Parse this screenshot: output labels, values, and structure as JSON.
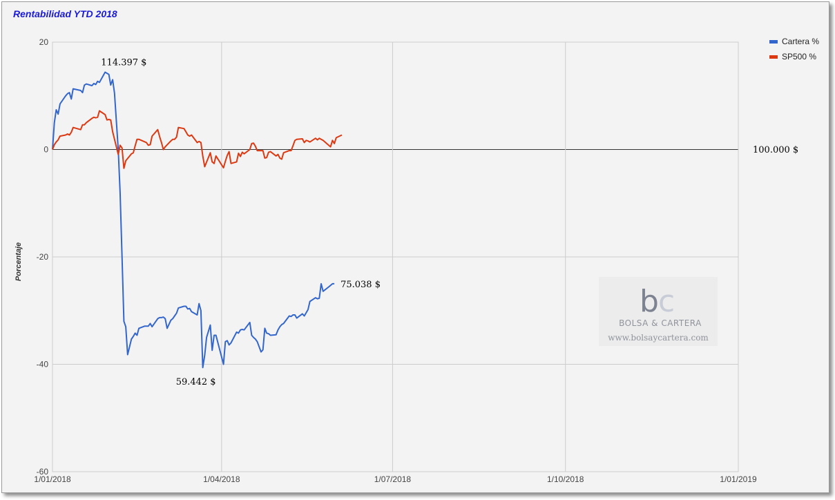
{
  "chart_data": {
    "type": "line",
    "title": "Rentabilidad YTD 2018",
    "ylabel": "Porcentaje",
    "xlabel": "",
    "ylim": [
      -60,
      20
    ],
    "yticks": [
      "20",
      "0",
      "-20",
      "-40",
      "-60"
    ],
    "xlim": [
      "2018-01-01",
      "2019-01-01"
    ],
    "xticks": [
      {
        "date": "2018-01-01",
        "label": "1/01/2018"
      },
      {
        "date": "2018-04-01",
        "label": "1/04/2018"
      },
      {
        "date": "2018-07-01",
        "label": "1/07/2018"
      },
      {
        "date": "2018-10-01",
        "label": "1/10/2018"
      },
      {
        "date": "2019-01-01",
        "label": "1/01/2019"
      }
    ],
    "grid": true,
    "legend_position": "top-right",
    "baseline_label": "100.000 $",
    "annotations": [
      {
        "date": "2018-02-08",
        "y": 14.4,
        "text": "114.397 $"
      },
      {
        "date": "2018-03-22",
        "y": -40.6,
        "text": "59.442 $"
      },
      {
        "date": "2018-05-31",
        "y": -25.0,
        "text": "75.038 $"
      }
    ],
    "series": [
      {
        "name": "Cartera %",
        "color": "#3366cc",
        "points": [
          [
            "2018-01-01",
            0.0
          ],
          [
            "2018-01-02",
            5.0
          ],
          [
            "2018-01-03",
            7.4
          ],
          [
            "2018-01-04",
            6.6
          ],
          [
            "2018-01-05",
            8.5
          ],
          [
            "2018-01-08",
            10.0
          ],
          [
            "2018-01-09",
            10.4
          ],
          [
            "2018-01-10",
            10.6
          ],
          [
            "2018-01-11",
            9.4
          ],
          [
            "2018-01-12",
            11.3
          ],
          [
            "2018-01-16",
            11.0
          ],
          [
            "2018-01-17",
            10.6
          ],
          [
            "2018-01-18",
            12.0
          ],
          [
            "2018-01-19",
            12.2
          ],
          [
            "2018-01-22",
            11.9
          ],
          [
            "2018-01-23",
            12.3
          ],
          [
            "2018-01-24",
            12.1
          ],
          [
            "2018-01-25",
            12.7
          ],
          [
            "2018-01-26",
            12.5
          ],
          [
            "2018-01-29",
            14.4
          ],
          [
            "2018-01-30",
            14.2
          ],
          [
            "2018-01-31",
            14.0
          ],
          [
            "2018-02-01",
            12.0
          ],
          [
            "2018-02-02",
            13.0
          ],
          [
            "2018-02-03",
            10.5
          ],
          [
            "2018-02-05",
            0.0
          ],
          [
            "2018-02-06",
            -8.0
          ],
          [
            "2018-02-07",
            -20.0
          ],
          [
            "2018-02-08",
            -32.0
          ],
          [
            "2018-02-09",
            -33.0
          ],
          [
            "2018-02-10",
            -38.2
          ],
          [
            "2018-02-12",
            -35.3
          ],
          [
            "2018-02-13",
            -34.8
          ],
          [
            "2018-02-14",
            -34.2
          ],
          [
            "2018-02-15",
            -34.6
          ],
          [
            "2018-02-16",
            -33.3
          ],
          [
            "2018-02-19",
            -32.9
          ],
          [
            "2018-02-20",
            -32.9
          ],
          [
            "2018-02-21",
            -32.9
          ],
          [
            "2018-02-22",
            -32.4
          ],
          [
            "2018-02-23",
            -33.0
          ],
          [
            "2018-02-26",
            -31.5
          ],
          [
            "2018-02-27",
            -31.3
          ],
          [
            "2018-02-28",
            -31.3
          ],
          [
            "2018-03-01",
            -31.2
          ],
          [
            "2018-03-02",
            -31.5
          ],
          [
            "2018-03-03",
            -33.3
          ],
          [
            "2018-03-05",
            -31.8
          ],
          [
            "2018-03-06",
            -31.5
          ],
          [
            "2018-03-07",
            -31.0
          ],
          [
            "2018-03-08",
            -30.5
          ],
          [
            "2018-03-09",
            -29.5
          ],
          [
            "2018-03-12",
            -29.2
          ],
          [
            "2018-03-13",
            -29.2
          ],
          [
            "2018-03-14",
            -29.7
          ],
          [
            "2018-03-15",
            -29.6
          ],
          [
            "2018-03-16",
            -30.2
          ],
          [
            "2018-03-19",
            -30.8
          ],
          [
            "2018-03-20",
            -28.7
          ],
          [
            "2018-03-21",
            -30.0
          ],
          [
            "2018-03-22",
            -40.6
          ],
          [
            "2018-03-23",
            -38.3
          ],
          [
            "2018-03-24",
            -35.0
          ],
          [
            "2018-03-26",
            -32.7
          ],
          [
            "2018-03-27",
            -37.4
          ],
          [
            "2018-03-28",
            -34.6
          ],
          [
            "2018-03-29",
            -34.6
          ],
          [
            "2018-04-02",
            -40.0
          ],
          [
            "2018-04-03",
            -35.8
          ],
          [
            "2018-04-04",
            -35.6
          ],
          [
            "2018-04-05",
            -36.4
          ],
          [
            "2018-04-06",
            -36.0
          ],
          [
            "2018-04-09",
            -34.0
          ],
          [
            "2018-04-10",
            -34.2
          ],
          [
            "2018-04-11",
            -33.6
          ],
          [
            "2018-04-12",
            -33.5
          ],
          [
            "2018-04-13",
            -33.6
          ],
          [
            "2018-04-16",
            -32.2
          ],
          [
            "2018-04-17",
            -34.6
          ],
          [
            "2018-04-18",
            -35.0
          ],
          [
            "2018-04-19",
            -35.3
          ],
          [
            "2018-04-20",
            -35.8
          ],
          [
            "2018-04-22",
            -37.7
          ],
          [
            "2018-04-23",
            -37.3
          ],
          [
            "2018-04-24",
            -33.3
          ],
          [
            "2018-04-25",
            -34.2
          ],
          [
            "2018-04-26",
            -34.3
          ],
          [
            "2018-04-27",
            -34.6
          ],
          [
            "2018-04-30",
            -34.5
          ],
          [
            "2018-05-01",
            -33.6
          ],
          [
            "2018-05-02",
            -33.0
          ],
          [
            "2018-05-03",
            -32.6
          ],
          [
            "2018-05-04",
            -32.4
          ],
          [
            "2018-05-07",
            -31.0
          ],
          [
            "2018-05-08",
            -31.1
          ],
          [
            "2018-05-09",
            -30.8
          ],
          [
            "2018-05-10",
            -30.8
          ],
          [
            "2018-05-11",
            -31.4
          ],
          [
            "2018-05-14",
            -30.6
          ],
          [
            "2018-05-15",
            -31.0
          ],
          [
            "2018-05-16",
            -30.4
          ],
          [
            "2018-05-17",
            -29.8
          ],
          [
            "2018-05-18",
            -28.3
          ],
          [
            "2018-05-21",
            -27.6
          ],
          [
            "2018-05-22",
            -27.8
          ],
          [
            "2018-05-23",
            -27.7
          ],
          [
            "2018-05-24",
            -25.0
          ],
          [
            "2018-05-25",
            -26.4
          ],
          [
            "2018-05-28",
            -25.6
          ],
          [
            "2018-05-29",
            -25.3
          ],
          [
            "2018-05-30",
            -25.0
          ],
          [
            "2018-05-31",
            -25.0
          ]
        ]
      },
      {
        "name": "SP500 %",
        "color": "#dc3912",
        "points": [
          [
            "2018-01-01",
            0.0
          ],
          [
            "2018-01-02",
            0.9
          ],
          [
            "2018-01-03",
            1.4
          ],
          [
            "2018-01-04",
            1.8
          ],
          [
            "2018-01-05",
            2.5
          ],
          [
            "2018-01-08",
            2.7
          ],
          [
            "2018-01-09",
            2.9
          ],
          [
            "2018-01-10",
            2.7
          ],
          [
            "2018-01-11",
            3.2
          ],
          [
            "2018-01-12",
            4.1
          ],
          [
            "2018-01-16",
            3.7
          ],
          [
            "2018-01-17",
            4.6
          ],
          [
            "2018-01-18",
            4.6
          ],
          [
            "2018-01-19",
            5.0
          ],
          [
            "2018-01-22",
            5.8
          ],
          [
            "2018-01-23",
            6.0
          ],
          [
            "2018-01-24",
            5.9
          ],
          [
            "2018-01-25",
            6.0
          ],
          [
            "2018-01-26",
            7.2
          ],
          [
            "2018-01-29",
            6.5
          ],
          [
            "2018-01-30",
            5.5
          ],
          [
            "2018-01-31",
            5.6
          ],
          [
            "2018-02-01",
            5.5
          ],
          [
            "2018-02-02",
            3.3
          ],
          [
            "2018-02-05",
            -0.9
          ],
          [
            "2018-02-06",
            0.8
          ],
          [
            "2018-02-07",
            0.3
          ],
          [
            "2018-02-08",
            -3.5
          ],
          [
            "2018-02-09",
            -2.1
          ],
          [
            "2018-02-12",
            -0.8
          ],
          [
            "2018-02-13",
            -0.6
          ],
          [
            "2018-02-14",
            0.7
          ],
          [
            "2018-02-15",
            1.9
          ],
          [
            "2018-02-16",
            1.9
          ],
          [
            "2018-02-20",
            1.3
          ],
          [
            "2018-02-21",
            0.8
          ],
          [
            "2018-02-22",
            0.9
          ],
          [
            "2018-02-23",
            2.5
          ],
          [
            "2018-02-26",
            3.7
          ],
          [
            "2018-02-27",
            2.4
          ],
          [
            "2018-02-28",
            1.3
          ],
          [
            "2018-03-01",
            0.0
          ],
          [
            "2018-03-02",
            0.5
          ],
          [
            "2018-03-05",
            1.6
          ],
          [
            "2018-03-06",
            1.9
          ],
          [
            "2018-03-07",
            1.9
          ],
          [
            "2018-03-08",
            2.3
          ],
          [
            "2018-03-09",
            4.1
          ],
          [
            "2018-03-12",
            3.9
          ],
          [
            "2018-03-13",
            3.3
          ],
          [
            "2018-03-14",
            2.7
          ],
          [
            "2018-03-15",
            2.5
          ],
          [
            "2018-03-16",
            2.7
          ],
          [
            "2018-03-19",
            1.3
          ],
          [
            "2018-03-20",
            1.5
          ],
          [
            "2018-03-21",
            1.3
          ],
          [
            "2018-03-22",
            -1.2
          ],
          [
            "2018-03-23",
            -3.2
          ],
          [
            "2018-03-26",
            -0.6
          ],
          [
            "2018-03-27",
            -2.3
          ],
          [
            "2018-03-28",
            -2.6
          ],
          [
            "2018-03-29",
            -1.2
          ],
          [
            "2018-04-02",
            -3.4
          ],
          [
            "2018-04-03",
            -2.2
          ],
          [
            "2018-04-04",
            -1.1
          ],
          [
            "2018-04-05",
            -0.4
          ],
          [
            "2018-04-06",
            -2.6
          ],
          [
            "2018-04-09",
            -2.3
          ],
          [
            "2018-04-10",
            -0.7
          ],
          [
            "2018-04-11",
            -1.3
          ],
          [
            "2018-04-12",
            -0.5
          ],
          [
            "2018-04-13",
            -0.8
          ],
          [
            "2018-04-16",
            0.0
          ],
          [
            "2018-04-17",
            1.1
          ],
          [
            "2018-04-18",
            1.2
          ],
          [
            "2018-04-19",
            0.6
          ],
          [
            "2018-04-20",
            -0.2
          ],
          [
            "2018-04-23",
            -0.2
          ],
          [
            "2018-04-24",
            -1.6
          ],
          [
            "2018-04-25",
            -1.5
          ],
          [
            "2018-04-26",
            -0.5
          ],
          [
            "2018-04-27",
            -0.4
          ],
          [
            "2018-04-30",
            -1.2
          ],
          [
            "2018-05-01",
            -0.9
          ],
          [
            "2018-05-02",
            -1.6
          ],
          [
            "2018-05-03",
            -1.8
          ],
          [
            "2018-05-04",
            -0.6
          ],
          [
            "2018-05-07",
            -0.2
          ],
          [
            "2018-05-08",
            -0.2
          ],
          [
            "2018-05-09",
            0.7
          ],
          [
            "2018-05-10",
            1.7
          ],
          [
            "2018-05-11",
            1.9
          ],
          [
            "2018-05-14",
            2.0
          ],
          [
            "2018-05-15",
            1.3
          ],
          [
            "2018-05-16",
            1.7
          ],
          [
            "2018-05-17",
            1.6
          ],
          [
            "2018-05-18",
            1.4
          ],
          [
            "2018-05-21",
            2.1
          ],
          [
            "2018-05-22",
            1.8
          ],
          [
            "2018-05-23",
            2.1
          ],
          [
            "2018-05-24",
            1.9
          ],
          [
            "2018-05-25",
            1.7
          ],
          [
            "2018-05-29",
            0.5
          ],
          [
            "2018-05-30",
            1.7
          ],
          [
            "2018-05-31",
            1.1
          ],
          [
            "2018-06-01",
            2.2
          ],
          [
            "2018-06-04",
            2.7
          ]
        ]
      }
    ]
  },
  "watermark": {
    "logo_main": "b",
    "logo_accent": "c",
    "brand": "BOLSA & CARTERA",
    "url": "www.bolsaycartera.com"
  }
}
